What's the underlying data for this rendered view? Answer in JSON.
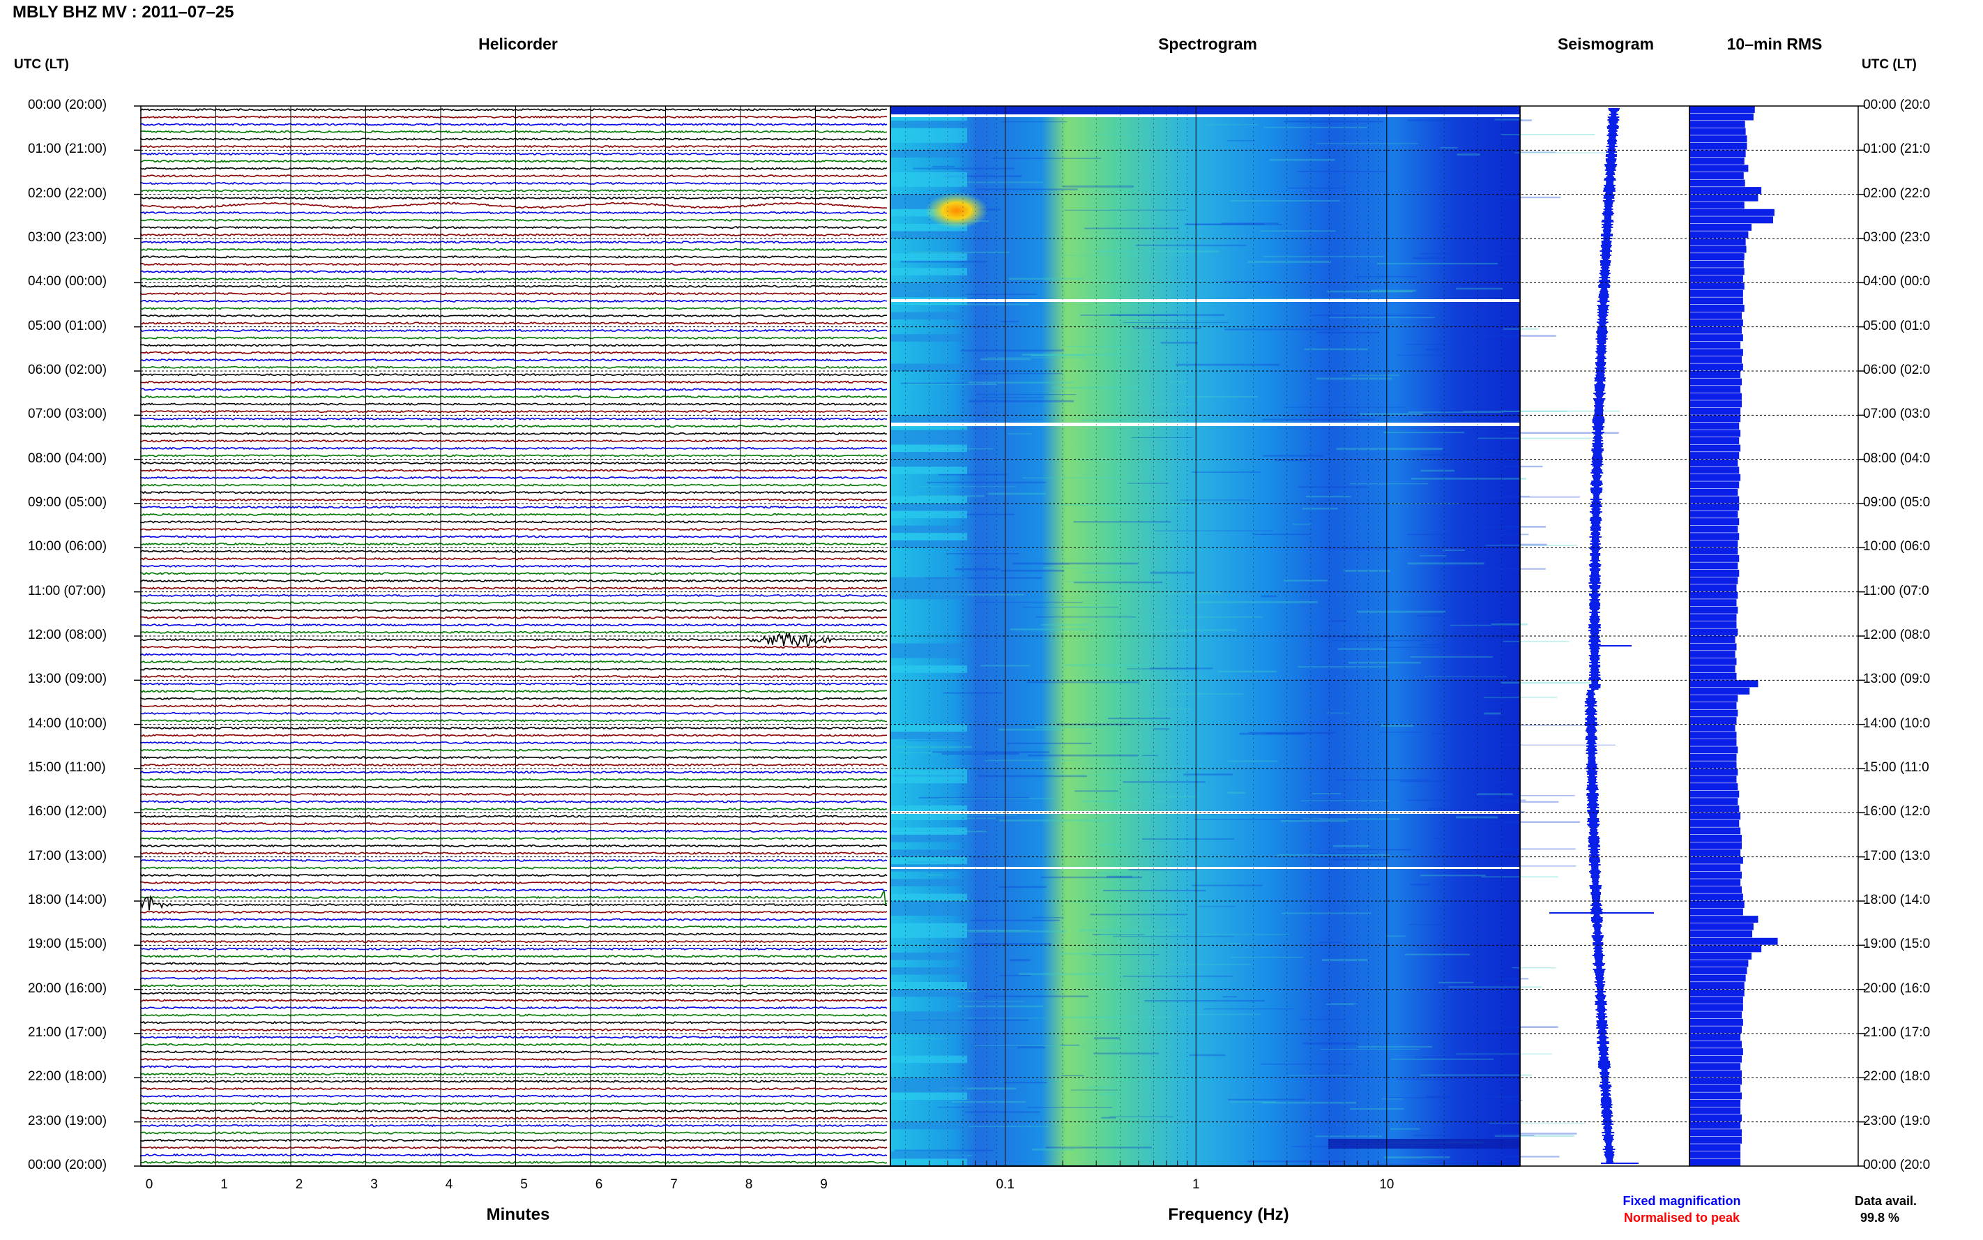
{
  "header": {
    "title": "MBLY BHZ MV : 2011–07–25"
  },
  "panels": {
    "helicorder": "Helicorder",
    "spectrogram": "Spectrogram",
    "seismogram": "Seismogram",
    "rms": "10–min RMS"
  },
  "time_axis": {
    "left_header": "UTC (LT)",
    "right_header": "UTC (LT)",
    "left_labels": [
      "00:00 (20:00)",
      "01:00 (21:00)",
      "02:00 (22:00)",
      "03:00 (23:00)",
      "04:00 (00:00)",
      "05:00 (01:00)",
      "06:00 (02:00)",
      "07:00 (03:00)",
      "08:00 (04:00)",
      "09:00 (05:00)",
      "10:00 (06:00)",
      "11:00 (07:00)",
      "12:00 (08:00)",
      "13:00 (09:00)",
      "14:00 (10:00)",
      "15:00 (11:00)",
      "16:00 (12:00)",
      "17:00 (13:00)",
      "18:00 (14:00)",
      "19:00 (15:00)",
      "20:00 (16:00)",
      "21:00 (17:00)",
      "22:00 (18:00)",
      "23:00 (19:00)",
      "00:00 (20:00)"
    ],
    "right_labels": [
      "00:00 (20:0",
      "01:00 (21:0",
      "02:00 (22:0",
      "03:00 (23:0",
      "04:00 (00:0",
      "05:00 (01:0",
      "06:00 (02:0",
      "07:00 (03:0",
      "08:00 (04:0",
      "09:00 (05:0",
      "10:00 (06:0",
      "11:00 (07:0",
      "12:00 (08:0",
      "13:00 (09:0",
      "14:00 (10:0",
      "15:00 (11:0",
      "16:00 (12:0",
      "17:00 (13:0",
      "18:00 (14:0",
      "19:00 (15:0",
      "20:00 (16:0",
      "21:00 (17:0",
      "22:00 (18:0",
      "23:00 (19:0",
      "00:00 (20:0"
    ]
  },
  "helicorder_axis": {
    "ticks": [
      "0",
      "1",
      "2",
      "3",
      "4",
      "5",
      "6",
      "7",
      "8",
      "9"
    ],
    "xlabel": "Minutes"
  },
  "spectrogram_axis": {
    "ticks": [
      "0.1",
      "1",
      "10"
    ],
    "xlabel": "Frequency (Hz)"
  },
  "legend": {
    "fixed": "Fixed magnification",
    "normalised": "Normalised to peak",
    "avail_label": "Data avail.",
    "avail_value": "99.8 %"
  },
  "colors": {
    "trace_cycle": [
      "#000000",
      "#8b0000",
      "#0000ee",
      "#007a00"
    ],
    "fixed_legend": "#0000ff",
    "normalised_legend": "#ff0000",
    "rms_bar": "#0a1fe8",
    "seismogram": "#0a1fe8"
  },
  "chart_data": [
    {
      "type": "line",
      "panel": "helicorder",
      "xlabel": "Minutes",
      "x_range": [
        0,
        10
      ],
      "rows_per_hour": 6,
      "row_duration_minutes": 10,
      "events": [
        {
          "time": "02:10",
          "minute_range": [
            0,
            10
          ],
          "note": "long-period waves"
        },
        {
          "time": "12:00",
          "minute": 8.7,
          "note": "event burst"
        },
        {
          "time": "18:00",
          "minute": 0.1,
          "note": "event burst"
        },
        {
          "time": "17:50",
          "minute": 10,
          "note": "spike"
        }
      ]
    },
    {
      "type": "heatmap",
      "panel": "spectrogram",
      "xlabel": "Frequency (Hz)",
      "x_scale": "log",
      "x_range": [
        0.025,
        50
      ],
      "energy_bands": [
        {
          "freq_range": [
            0.25,
            0.6
          ],
          "level": "high"
        },
        {
          "freq_range": [
            0.03,
            0.2
          ],
          "level": "medium"
        },
        {
          "freq_range": [
            5,
            50
          ],
          "level": "low"
        }
      ],
      "hot_spot": {
        "time_range": [
          "02:00",
          "02:40"
        ],
        "freq_range": [
          0.03,
          0.07
        ]
      }
    },
    {
      "type": "line",
      "panel": "seismogram",
      "spikes": [
        {
          "time": "12:05",
          "size": "small"
        },
        {
          "time": "18:05",
          "size": "large"
        },
        {
          "time": "23:50",
          "size": "small"
        }
      ]
    },
    {
      "type": "bar",
      "panel": "rms",
      "bars_per_hour": 6,
      "values": [
        1.0,
        0.98,
        0.85,
        0.86,
        0.88,
        0.88,
        0.86,
        0.84,
        0.9,
        0.83,
        0.85,
        1.1,
        1.05,
        0.84,
        1.3,
        1.28,
        0.95,
        0.9,
        0.86,
        0.87,
        0.84,
        0.83,
        0.84,
        0.82,
        0.84,
        0.82,
        0.82,
        0.84,
        0.8,
        0.82,
        0.8,
        0.82,
        0.78,
        0.82,
        0.8,
        0.82,
        0.78,
        0.8,
        0.78,
        0.8,
        0.8,
        0.78,
        0.78,
        0.76,
        0.78,
        0.76,
        0.78,
        0.76,
        0.74,
        0.76,
        0.78,
        0.76,
        0.74,
        0.76,
        0.76,
        0.74,
        0.76,
        0.74,
        0.76,
        0.74,
        0.74,
        0.76,
        0.74,
        0.76,
        0.74,
        0.72,
        0.74,
        0.72,
        0.74,
        0.72,
        0.72,
        0.74,
        0.7,
        0.72,
        0.7,
        0.72,
        0.7,
        0.72,
        1.05,
        0.92,
        0.74,
        0.72,
        0.74,
        0.72,
        0.7,
        0.72,
        0.72,
        0.74,
        0.72,
        0.72,
        0.74,
        0.72,
        0.74,
        0.76,
        0.74,
        0.76,
        0.78,
        0.76,
        0.78,
        0.8,
        0.8,
        0.78,
        0.82,
        0.78,
        0.8,
        0.78,
        0.8,
        0.82,
        0.84,
        0.82,
        1.05,
        0.98,
        0.96,
        1.35,
        1.1,
        0.95,
        0.9,
        0.88,
        0.86,
        0.84,
        0.84,
        0.82,
        0.82,
        0.8,
        0.82,
        0.8,
        0.78,
        0.8,
        0.82,
        0.8,
        0.78,
        0.8,
        0.8,
        0.78,
        0.8,
        0.78,
        0.78,
        0.8,
        0.78,
        0.8,
        0.8,
        0.78,
        0.78,
        0.78
      ]
    }
  ]
}
